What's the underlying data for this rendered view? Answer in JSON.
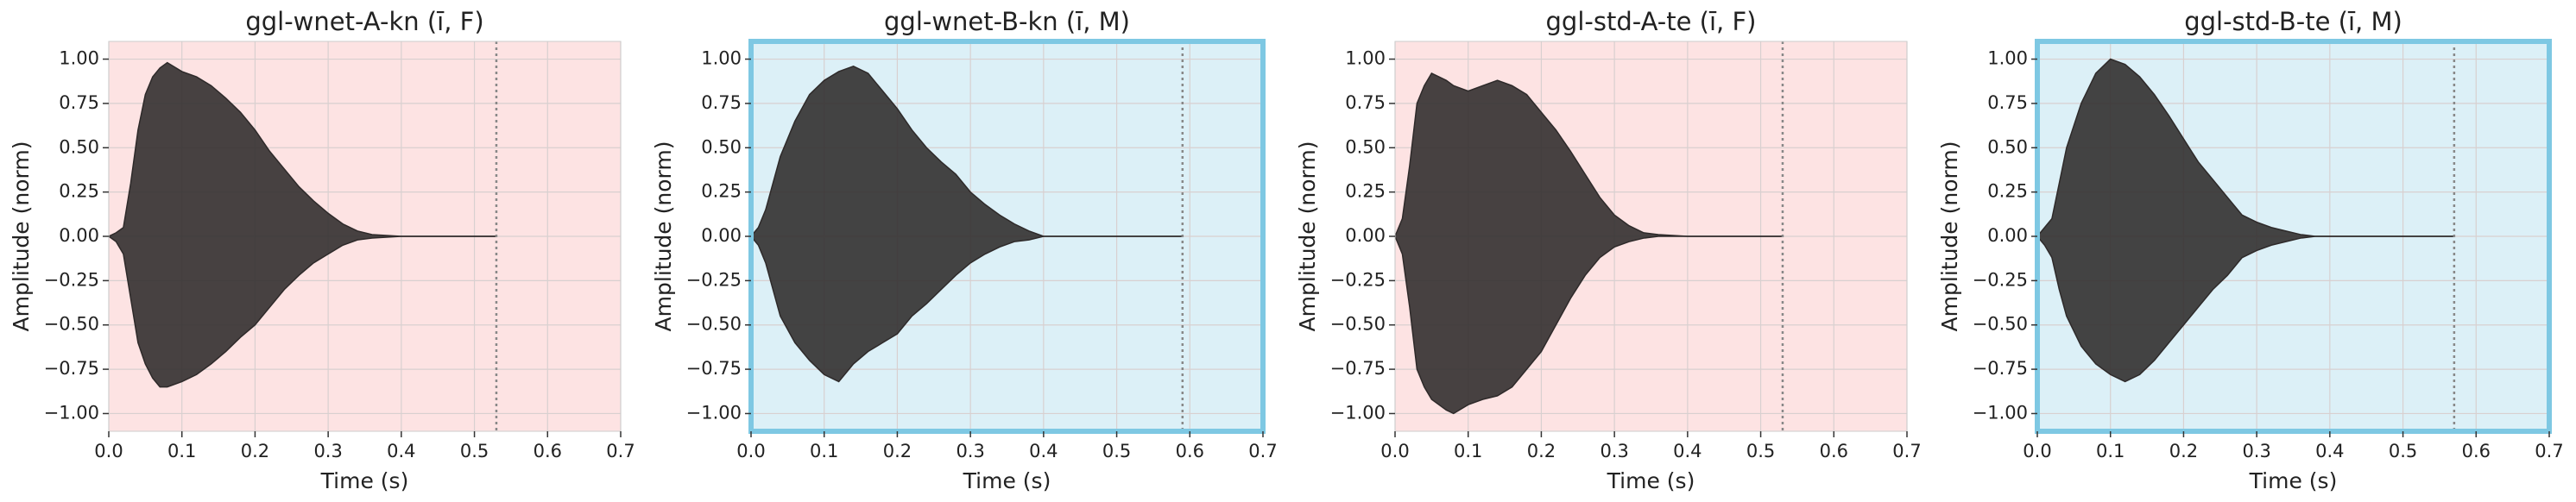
{
  "chart_data": [
    {
      "type": "area",
      "title": "ggl-wnet-A-kn (ī, F)",
      "xlabel": "Time (s)",
      "ylabel": "Amplitude (norm)",
      "x": [
        0,
        0.01,
        0.02,
        0.03,
        0.04,
        0.05,
        0.06,
        0.07,
        0.08,
        0.1,
        0.12,
        0.14,
        0.16,
        0.18,
        0.2,
        0.22,
        0.24,
        0.26,
        0.28,
        0.3,
        0.32,
        0.34,
        0.36,
        0.4,
        0.45,
        0.5,
        0.53
      ],
      "max": [
        0,
        0.02,
        0.05,
        0.3,
        0.6,
        0.8,
        0.9,
        0.95,
        0.98,
        0.93,
        0.9,
        0.85,
        0.78,
        0.7,
        0.6,
        0.48,
        0.38,
        0.28,
        0.2,
        0.13,
        0.07,
        0.03,
        0.01,
        0,
        0,
        0,
        0
      ],
      "min": [
        0,
        -0.03,
        -0.1,
        -0.35,
        -0.6,
        -0.72,
        -0.8,
        -0.85,
        -0.85,
        -0.82,
        -0.78,
        -0.72,
        -0.65,
        -0.57,
        -0.5,
        -0.4,
        -0.3,
        -0.22,
        -0.15,
        -0.1,
        -0.05,
        -0.02,
        -0.01,
        0,
        0,
        0,
        0
      ],
      "color": "#2e2a2a",
      "facecolor": "#fde3e3",
      "vline_x": 0.53,
      "vline_color": "#888888",
      "grid": true,
      "xlim": [
        0,
        0.7
      ],
      "ylim": [
        -1.1,
        1.1
      ],
      "xticks": [
        {
          "value": 0,
          "label": "0.0"
        },
        {
          "value": 0.1,
          "label": "0.1"
        },
        {
          "value": 0.2,
          "label": "0.2"
        },
        {
          "value": 0.3,
          "label": "0.3"
        },
        {
          "value": 0.4,
          "label": "0.4"
        },
        {
          "value": 0.5,
          "label": "0.5"
        },
        {
          "value": 0.6,
          "label": "0.6"
        },
        {
          "value": 0.7,
          "label": "0.7"
        }
      ],
      "yticks": [
        {
          "value": -1,
          "label": "−1.00"
        },
        {
          "value": -0.75,
          "label": "−0.75"
        },
        {
          "value": -0.5,
          "label": "−0.50"
        },
        {
          "value": -0.25,
          "label": "−0.25"
        },
        {
          "value": 0,
          "label": "0.00"
        },
        {
          "value": 0.25,
          "label": "0.25"
        },
        {
          "value": 0.5,
          "label": "0.50"
        },
        {
          "value": 0.75,
          "label": "0.75"
        },
        {
          "value": 1,
          "label": "1.00"
        }
      ]
    },
    {
      "type": "area",
      "title": "ggl-wnet-B-kn (ī, M)",
      "xlabel": "Time (s)",
      "ylabel": "Amplitude (norm)",
      "x": [
        0,
        0.01,
        0.02,
        0.03,
        0.04,
        0.06,
        0.08,
        0.1,
        0.12,
        0.14,
        0.16,
        0.18,
        0.2,
        0.22,
        0.24,
        0.26,
        0.28,
        0.3,
        0.32,
        0.34,
        0.36,
        0.38,
        0.4,
        0.45,
        0.5,
        0.55,
        0.59
      ],
      "max": [
        0,
        0.05,
        0.15,
        0.3,
        0.45,
        0.65,
        0.8,
        0.88,
        0.93,
        0.96,
        0.92,
        0.82,
        0.72,
        0.6,
        0.5,
        0.42,
        0.35,
        0.25,
        0.18,
        0.12,
        0.07,
        0.03,
        0,
        0,
        0,
        0,
        0
      ],
      "min": [
        0,
        -0.05,
        -0.15,
        -0.3,
        -0.45,
        -0.6,
        -0.7,
        -0.78,
        -0.82,
        -0.72,
        -0.65,
        -0.6,
        -0.55,
        -0.45,
        -0.38,
        -0.3,
        -0.22,
        -0.15,
        -0.1,
        -0.06,
        -0.03,
        -0.02,
        0,
        0,
        0,
        0,
        0
      ],
      "color": "#2e2a2a",
      "facecolor": "#dcf0f7",
      "edgecolor": "#7ec8e3",
      "vline_x": 0.59,
      "vline_color": "#888888",
      "grid": true,
      "xlim": [
        0,
        0.7
      ],
      "ylim": [
        -1.1,
        1.1
      ],
      "xticks": [
        {
          "value": 0,
          "label": "0.0"
        },
        {
          "value": 0.1,
          "label": "0.1"
        },
        {
          "value": 0.2,
          "label": "0.2"
        },
        {
          "value": 0.3,
          "label": "0.3"
        },
        {
          "value": 0.4,
          "label": "0.4"
        },
        {
          "value": 0.5,
          "label": "0.5"
        },
        {
          "value": 0.6,
          "label": "0.6"
        },
        {
          "value": 0.7,
          "label": "0.7"
        }
      ],
      "yticks": [
        {
          "value": -1,
          "label": "−1.00"
        },
        {
          "value": -0.75,
          "label": "−0.75"
        },
        {
          "value": -0.5,
          "label": "−0.50"
        },
        {
          "value": -0.25,
          "label": "−0.25"
        },
        {
          "value": 0,
          "label": "0.00"
        },
        {
          "value": 0.25,
          "label": "0.25"
        },
        {
          "value": 0.5,
          "label": "0.50"
        },
        {
          "value": 0.75,
          "label": "0.75"
        },
        {
          "value": 1,
          "label": "1.00"
        }
      ]
    },
    {
      "type": "area",
      "title": "ggl-std-A-te (ī, F)",
      "xlabel": "Time (s)",
      "ylabel": "Amplitude (norm)",
      "x": [
        0,
        0.01,
        0.02,
        0.03,
        0.04,
        0.05,
        0.06,
        0.07,
        0.08,
        0.1,
        0.12,
        0.14,
        0.16,
        0.18,
        0.2,
        0.22,
        0.24,
        0.26,
        0.28,
        0.3,
        0.32,
        0.34,
        0.36,
        0.4,
        0.45,
        0.5,
        0.53
      ],
      "max": [
        0,
        0.1,
        0.4,
        0.75,
        0.85,
        0.92,
        0.9,
        0.88,
        0.85,
        0.82,
        0.85,
        0.88,
        0.85,
        0.8,
        0.7,
        0.6,
        0.48,
        0.35,
        0.22,
        0.12,
        0.06,
        0.02,
        0.01,
        0,
        0,
        0,
        0
      ],
      "min": [
        0,
        -0.1,
        -0.4,
        -0.75,
        -0.85,
        -0.92,
        -0.95,
        -0.98,
        -1.0,
        -0.95,
        -0.92,
        -0.9,
        -0.85,
        -0.75,
        -0.65,
        -0.5,
        -0.35,
        -0.22,
        -0.12,
        -0.06,
        -0.03,
        -0.01,
        0,
        0,
        0,
        0,
        0
      ],
      "color": "#2e2a2a",
      "facecolor": "#fde3e3",
      "vline_x": 0.53,
      "vline_color": "#888888",
      "grid": true,
      "xlim": [
        0,
        0.7
      ],
      "ylim": [
        -1.1,
        1.1
      ],
      "xticks": [
        {
          "value": 0,
          "label": "0.0"
        },
        {
          "value": 0.1,
          "label": "0.1"
        },
        {
          "value": 0.2,
          "label": "0.2"
        },
        {
          "value": 0.3,
          "label": "0.3"
        },
        {
          "value": 0.4,
          "label": "0.4"
        },
        {
          "value": 0.5,
          "label": "0.5"
        },
        {
          "value": 0.6,
          "label": "0.6"
        },
        {
          "value": 0.7,
          "label": "0.7"
        }
      ],
      "yticks": [
        {
          "value": -1,
          "label": "−1.00"
        },
        {
          "value": -0.75,
          "label": "−0.75"
        },
        {
          "value": -0.5,
          "label": "−0.50"
        },
        {
          "value": -0.25,
          "label": "−0.25"
        },
        {
          "value": 0,
          "label": "0.00"
        },
        {
          "value": 0.25,
          "label": "0.25"
        },
        {
          "value": 0.5,
          "label": "0.50"
        },
        {
          "value": 0.75,
          "label": "0.75"
        },
        {
          "value": 1,
          "label": "1.00"
        }
      ]
    },
    {
      "type": "area",
      "title": "ggl-std-B-te (ī, M)",
      "xlabel": "Time (s)",
      "ylabel": "Amplitude (norm)",
      "x": [
        0,
        0.01,
        0.02,
        0.03,
        0.04,
        0.06,
        0.08,
        0.1,
        0.12,
        0.14,
        0.16,
        0.18,
        0.2,
        0.22,
        0.24,
        0.26,
        0.28,
        0.3,
        0.32,
        0.34,
        0.36,
        0.38,
        0.4,
        0.45,
        0.5,
        0.55,
        0.57
      ],
      "max": [
        0,
        0.05,
        0.1,
        0.3,
        0.5,
        0.75,
        0.92,
        1.0,
        0.97,
        0.9,
        0.8,
        0.68,
        0.55,
        0.42,
        0.32,
        0.22,
        0.12,
        0.08,
        0.05,
        0.03,
        0.01,
        0,
        0,
        0,
        0,
        0,
        0
      ],
      "min": [
        0,
        -0.05,
        -0.12,
        -0.3,
        -0.45,
        -0.62,
        -0.72,
        -0.78,
        -0.82,
        -0.78,
        -0.7,
        -0.6,
        -0.5,
        -0.4,
        -0.3,
        -0.22,
        -0.12,
        -0.08,
        -0.05,
        -0.03,
        -0.01,
        0,
        0,
        0,
        0,
        0,
        0
      ],
      "color": "#2e2a2a",
      "facecolor": "#dcf0f7",
      "edgecolor": "#7ec8e3",
      "vline_x": 0.57,
      "vline_color": "#888888",
      "grid": true,
      "xlim": [
        0,
        0.7
      ],
      "ylim": [
        -1.1,
        1.1
      ],
      "xticks": [
        {
          "value": 0,
          "label": "0.0"
        },
        {
          "value": 0.1,
          "label": "0.1"
        },
        {
          "value": 0.2,
          "label": "0.2"
        },
        {
          "value": 0.3,
          "label": "0.3"
        },
        {
          "value": 0.4,
          "label": "0.4"
        },
        {
          "value": 0.5,
          "label": "0.5"
        },
        {
          "value": 0.6,
          "label": "0.6"
        },
        {
          "value": 0.7,
          "label": "0.7"
        }
      ],
      "yticks": [
        {
          "value": -1,
          "label": "−1.00"
        },
        {
          "value": -0.75,
          "label": "−0.75"
        },
        {
          "value": -0.5,
          "label": "−0.50"
        },
        {
          "value": -0.25,
          "label": "−0.25"
        },
        {
          "value": 0,
          "label": "0.00"
        },
        {
          "value": 0.25,
          "label": "0.25"
        },
        {
          "value": 0.5,
          "label": "0.50"
        },
        {
          "value": 0.75,
          "label": "0.75"
        },
        {
          "value": 1,
          "label": "1.00"
        }
      ]
    }
  ]
}
